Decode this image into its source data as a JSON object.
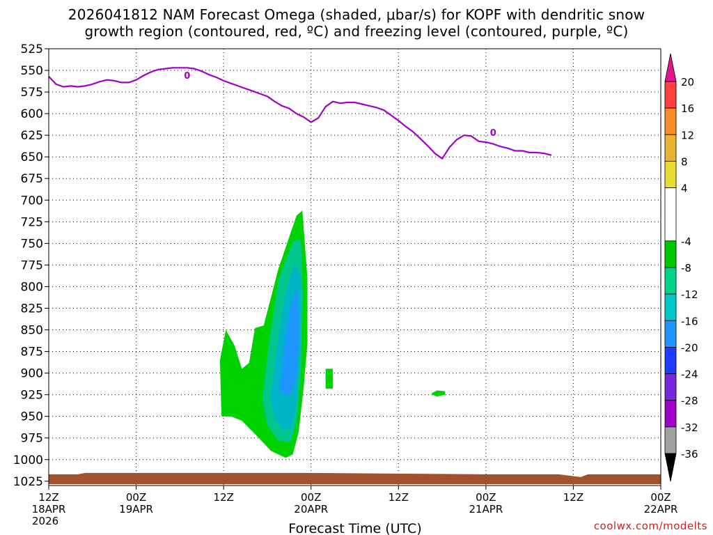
{
  "title_line1": "2026041812 NAM Forecast Omega (shaded, μbar/s) for KOPF with dendritic snow",
  "title_line2": "growth region (contoured, red, ºC) and freezing level (contoured, purple, ºC)",
  "credit": "coolwx.com/modelts",
  "chart_data": {
    "type": "time-height",
    "xlabel": "Forecast Time (UTC)",
    "ylabel": "",
    "y_unit": "mb",
    "xlim": [
      0,
      84
    ],
    "ylim": [
      1030,
      525
    ],
    "y_ticks": [
      525,
      550,
      575,
      600,
      625,
      650,
      675,
      700,
      725,
      750,
      775,
      800,
      825,
      850,
      875,
      900,
      925,
      950,
      975,
      1000,
      1025
    ],
    "x_ticks": [
      {
        "hour": 0,
        "line1": "12Z",
        "line2": "18APR",
        "line3": "2026"
      },
      {
        "hour": 12,
        "line1": "00Z",
        "line2": "19APR",
        "line3": ""
      },
      {
        "hour": 24,
        "line1": "12Z",
        "line2": "",
        "line3": ""
      },
      {
        "hour": 36,
        "line1": "00Z",
        "line2": "20APR",
        "line3": ""
      },
      {
        "hour": 48,
        "line1": "12Z",
        "line2": "",
        "line3": ""
      },
      {
        "hour": 60,
        "line1": "00Z",
        "line2": "21APR",
        "line3": ""
      },
      {
        "hour": 72,
        "line1": "12Z",
        "line2": "",
        "line3": ""
      },
      {
        "hour": 84,
        "line1": "00Z",
        "line2": "22APR",
        "line3": ""
      }
    ],
    "freezing_level": {
      "color": "#a000c8",
      "label": "0",
      "label_points": [
        {
          "hour": 19,
          "pressure": 555
        },
        {
          "hour": 61,
          "pressure": 621
        }
      ],
      "points": [
        [
          0,
          557
        ],
        [
          1,
          566
        ],
        [
          2,
          569
        ],
        [
          3,
          568
        ],
        [
          4,
          569
        ],
        [
          5,
          568
        ],
        [
          6,
          566
        ],
        [
          7,
          563
        ],
        [
          8,
          561
        ],
        [
          9,
          562
        ],
        [
          10,
          564
        ],
        [
          11,
          564
        ],
        [
          12,
          561
        ],
        [
          13,
          556
        ],
        [
          14,
          552
        ],
        [
          15,
          549
        ],
        [
          16,
          548
        ],
        [
          17,
          547
        ],
        [
          18,
          547
        ],
        [
          19,
          547
        ],
        [
          20,
          548
        ],
        [
          21,
          551
        ],
        [
          22,
          555
        ],
        [
          23,
          558
        ],
        [
          24,
          562
        ],
        [
          25,
          565
        ],
        [
          26,
          568
        ],
        [
          27,
          571
        ],
        [
          28,
          574
        ],
        [
          29,
          577
        ],
        [
          30,
          580
        ],
        [
          31,
          586
        ],
        [
          32,
          591
        ],
        [
          33,
          594
        ],
        [
          34,
          600
        ],
        [
          35,
          604
        ],
        [
          36,
          610
        ],
        [
          37,
          605
        ],
        [
          38,
          592
        ],
        [
          39,
          586
        ],
        [
          40,
          588
        ],
        [
          41,
          587
        ],
        [
          42,
          587
        ],
        [
          43,
          589
        ],
        [
          44,
          591
        ],
        [
          45,
          593
        ],
        [
          46,
          596
        ],
        [
          47,
          602
        ],
        [
          48,
          608
        ],
        [
          49,
          615
        ],
        [
          50,
          621
        ],
        [
          51,
          629
        ],
        [
          52,
          637
        ],
        [
          53,
          646
        ],
        [
          54,
          652
        ],
        [
          55,
          639
        ],
        [
          56,
          630
        ],
        [
          57,
          625
        ],
        [
          58,
          626
        ],
        [
          59,
          632
        ],
        [
          60,
          633
        ],
        [
          61,
          635
        ],
        [
          62,
          638
        ],
        [
          63,
          640
        ],
        [
          64,
          643
        ],
        [
          65,
          643
        ],
        [
          66,
          645
        ],
        [
          67,
          645
        ],
        [
          68,
          646
        ],
        [
          69,
          648
        ]
      ],
      "points_note": "x in hours from 12Z 18APR, y in mb"
    },
    "ground_layer": {
      "top_mb": 1017,
      "color": "#a0522d"
    },
    "omega_shaded": [
      {
        "level": "-4 to -8",
        "color": "#00d200",
        "region": "main",
        "approx_range": {
          "hour": [
            23.5,
            35.5
          ],
          "mb": [
            710,
            998
          ]
        }
      },
      {
        "level": "-8 to -12",
        "color": "#00c88c",
        "region": "core",
        "approx_range": {
          "hour": [
            29,
            35
          ],
          "mb": [
            745,
            978
          ]
        }
      },
      {
        "level": "-12 to -16",
        "color": "#00b4c8",
        "region": "core",
        "approx_range": {
          "hour": [
            30,
            35
          ],
          "mb": [
            770,
            965
          ]
        }
      },
      {
        "level": "-16 to -20",
        "color": "#1e96ff",
        "region": "core",
        "approx_range": {
          "hour": [
            31.5,
            34.5
          ],
          "mb": [
            800,
            925
          ]
        }
      },
      {
        "level": "-4 to -8",
        "color": "#00d200",
        "region": "small",
        "approx_range": {
          "hour": [
            38,
            39
          ],
          "mb": [
            895,
            918
          ]
        }
      },
      {
        "level": "-4 to -8",
        "color": "#00d200",
        "region": "small",
        "approx_range": {
          "hour": [
            52.5,
            54.5
          ],
          "mb": [
            920,
            927
          ]
        }
      }
    ],
    "colorbar": {
      "labels": [
        "20",
        "16",
        "12",
        "8",
        "4",
        "-4",
        "-8",
        "-12",
        "-16",
        "-20",
        "-24",
        "-28",
        "-32",
        "-36"
      ],
      "segments": [
        {
          "from": 20,
          "to": 16,
          "color": "#ff4040"
        },
        {
          "from": 16,
          "to": 12,
          "color": "#f58c2a"
        },
        {
          "from": 12,
          "to": 8,
          "color": "#e6b432"
        },
        {
          "from": 8,
          "to": 4,
          "color": "#e6dc32"
        },
        {
          "from": 4,
          "to": -4,
          "color": "#ffffff"
        },
        {
          "from": -4,
          "to": -8,
          "color": "#00c800"
        },
        {
          "from": -8,
          "to": -12,
          "color": "#00d28c"
        },
        {
          "from": -12,
          "to": -16,
          "color": "#00c8c8"
        },
        {
          "from": -16,
          "to": -20,
          "color": "#1e96ff"
        },
        {
          "from": -20,
          "to": -24,
          "color": "#1e3cff"
        },
        {
          "from": -24,
          "to": -28,
          "color": "#7828dc"
        },
        {
          "from": -28,
          "to": -32,
          "color": "#a000c8"
        },
        {
          "from": -32,
          "to": -36,
          "color": "#a0a0a0"
        }
      ],
      "top_arrow_color": "#e6148c",
      "bottom_arrow_color": "#000000"
    }
  }
}
